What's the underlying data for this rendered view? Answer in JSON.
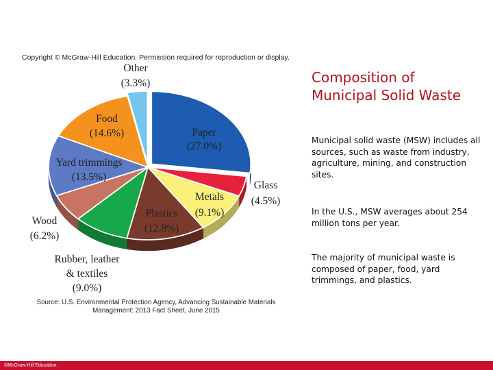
{
  "copyright": "Copyright © McGraw-Hill Education. Permission required for reproduction or display.",
  "slide": {
    "title_line1": "Composition of",
    "title_line2": "Municipal Solid Waste",
    "paragraphs": [
      "Municipal solid waste (MSW) includes all sources, such as waste from industry, agriculture, mining, and construction sites.",
      "In the U.S., MSW averages about 254 million tons per year.",
      "The majority of municipal waste is composed of paper, food, yard trimmings, and plastics."
    ]
  },
  "source": {
    "line1": "Source: U.S. Environmental Protection Agency, Advancing Sustainable Materials",
    "line2": "Management: 2013 Fact Sheet, June 2015"
  },
  "footer": "©McGraw-Hill Education.",
  "chart_data": {
    "type": "pie",
    "title": "",
    "slices": [
      {
        "label": "Paper",
        "value_label": "(27.0%)",
        "value": 27.0,
        "color": "#1d5cb0"
      },
      {
        "label": "Glass",
        "value_label": "(4.5%)",
        "value": 4.5,
        "color": "#e8213a"
      },
      {
        "label": "Metals",
        "value_label": "(9.1%)",
        "value": 9.1,
        "color": "#faf07a"
      },
      {
        "label": "Plastics",
        "value_label": "(12.8%)",
        "value": 12.8,
        "color": "#7a3a2c"
      },
      {
        "label": "Rubber, leather & textiles",
        "value_label": "(9.0%)",
        "value": 9.0,
        "color": "#17a84a"
      },
      {
        "label": "Wood",
        "value_label": "(6.2%)",
        "value": 6.2,
        "color": "#c87462"
      },
      {
        "label": "Yard trimmings",
        "value_label": "(13.5%)",
        "value": 13.5,
        "color": "#5d7bc4"
      },
      {
        "label": "Food",
        "value_label": "(14.6%)",
        "value": 14.6,
        "color": "#f5921e"
      },
      {
        "label": "Other",
        "value_label": "(3.3%)",
        "value": 3.3,
        "color": "#74c6ec"
      }
    ]
  }
}
